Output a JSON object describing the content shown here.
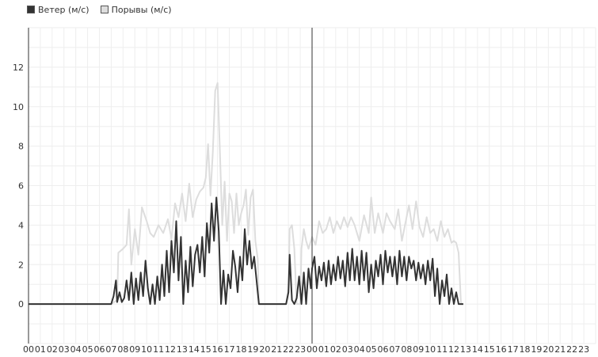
{
  "legend": [
    {
      "label": "Ветер (м/с)",
      "color": "#333333"
    },
    {
      "label": "Порывы (м/с)",
      "color": "#dddddd"
    }
  ],
  "chart_data": {
    "type": "line",
    "x_tick_labels": [
      "00",
      "01",
      "02",
      "03",
      "04",
      "05",
      "06",
      "07",
      "08",
      "09",
      "10",
      "11",
      "12",
      "13",
      "14",
      "15",
      "16",
      "17",
      "18",
      "19",
      "20",
      "21",
      "22",
      "23",
      "00",
      "01",
      "02",
      "03",
      "04",
      "05",
      "06",
      "07",
      "08",
      "09",
      "10",
      "11",
      "12",
      "13",
      "14",
      "15",
      "16",
      "17",
      "18",
      "19",
      "20",
      "21",
      "22",
      "23"
    ],
    "x_unit": "hour",
    "xlim": [
      0,
      47
    ],
    "y_ticks": [
      0,
      2,
      4,
      6,
      8,
      10,
      12
    ],
    "ylim": [
      -2,
      14
    ],
    "grid": true,
    "legend_position": "top-left",
    "day_divider_hour": 24,
    "series": [
      {
        "name": "Порывы (м/с)",
        "color": "#dddddd",
        "points": [
          [
            0,
            0
          ],
          [
            7.0,
            0
          ],
          [
            7.5,
            0.2
          ],
          [
            7.6,
            2.6
          ],
          [
            8.0,
            2.8
          ],
          [
            8.3,
            3.0
          ],
          [
            8.5,
            4.8
          ],
          [
            8.7,
            2.0
          ],
          [
            9.0,
            3.8
          ],
          [
            9.3,
            2.5
          ],
          [
            9.6,
            4.9
          ],
          [
            10.0,
            4.2
          ],
          [
            10.3,
            3.6
          ],
          [
            10.6,
            3.4
          ],
          [
            11.0,
            4.0
          ],
          [
            11.4,
            3.6
          ],
          [
            11.8,
            4.3
          ],
          [
            12.1,
            3.3
          ],
          [
            12.4,
            5.1
          ],
          [
            12.7,
            4.4
          ],
          [
            13.0,
            5.6
          ],
          [
            13.3,
            4.2
          ],
          [
            13.6,
            6.1
          ],
          [
            13.9,
            4.4
          ],
          [
            14.2,
            5.3
          ],
          [
            14.5,
            5.7
          ],
          [
            14.8,
            5.9
          ],
          [
            15.0,
            6.4
          ],
          [
            15.2,
            8.1
          ],
          [
            15.4,
            5.5
          ],
          [
            15.6,
            7.7
          ],
          [
            15.8,
            10.8
          ],
          [
            16.0,
            11.2
          ],
          [
            16.2,
            7.8
          ],
          [
            16.4,
            4.0
          ],
          [
            16.6,
            6.2
          ],
          [
            16.8,
            3.2
          ],
          [
            17.0,
            5.6
          ],
          [
            17.2,
            5.2
          ],
          [
            17.4,
            3.6
          ],
          [
            17.6,
            5.6
          ],
          [
            17.8,
            4.0
          ],
          [
            18.0,
            4.6
          ],
          [
            18.2,
            5.0
          ],
          [
            18.4,
            5.8
          ],
          [
            18.6,
            3.5
          ],
          [
            18.8,
            5.4
          ],
          [
            19.0,
            5.8
          ],
          [
            19.2,
            3.2
          ],
          [
            19.4,
            2.3
          ],
          [
            19.5,
            0
          ],
          [
            21.8,
            0
          ],
          [
            22.0,
            0.8
          ],
          [
            22.1,
            3.8
          ],
          [
            22.3,
            4.0
          ],
          [
            22.5,
            2.8
          ],
          [
            22.7,
            0
          ],
          [
            23.0,
            0
          ],
          [
            23.1,
            2.8
          ],
          [
            23.3,
            3.8
          ],
          [
            23.5,
            3.2
          ],
          [
            23.7,
            2.8
          ],
          [
            23.9,
            3.2
          ],
          [
            24.0,
            3.4
          ],
          [
            24.3,
            3.0
          ],
          [
            24.6,
            4.2
          ],
          [
            24.9,
            3.6
          ],
          [
            25.2,
            3.8
          ],
          [
            25.5,
            4.4
          ],
          [
            25.8,
            3.6
          ],
          [
            26.1,
            4.2
          ],
          [
            26.4,
            3.8
          ],
          [
            26.7,
            4.4
          ],
          [
            27.0,
            3.9
          ],
          [
            27.3,
            4.4
          ],
          [
            27.6,
            4.0
          ],
          [
            28.0,
            3.2
          ],
          [
            28.4,
            4.5
          ],
          [
            28.8,
            3.6
          ],
          [
            29.0,
            5.4
          ],
          [
            29.3,
            3.6
          ],
          [
            29.6,
            4.6
          ],
          [
            30.0,
            3.6
          ],
          [
            30.3,
            4.6
          ],
          [
            30.6,
            4.2
          ],
          [
            31.0,
            3.8
          ],
          [
            31.3,
            4.8
          ],
          [
            31.6,
            3.2
          ],
          [
            32.0,
            4.4
          ],
          [
            32.2,
            5.0
          ],
          [
            32.5,
            3.8
          ],
          [
            32.8,
            5.2
          ],
          [
            33.1,
            3.9
          ],
          [
            33.4,
            3.4
          ],
          [
            33.7,
            4.4
          ],
          [
            34.0,
            3.6
          ],
          [
            34.3,
            3.8
          ],
          [
            34.6,
            3.2
          ],
          [
            34.9,
            4.2
          ],
          [
            35.2,
            3.4
          ],
          [
            35.5,
            3.8
          ],
          [
            35.8,
            3.1
          ],
          [
            36.0,
            3.2
          ],
          [
            36.2,
            3.1
          ],
          [
            36.4,
            2.6
          ],
          [
            36.6,
            0
          ],
          [
            36.8,
            0
          ]
        ]
      },
      {
        "name": "Ветер (м/с)",
        "color": "#333333",
        "points": [
          [
            0,
            0
          ],
          [
            7.0,
            0
          ],
          [
            7.2,
            0.4
          ],
          [
            7.4,
            1.2
          ],
          [
            7.5,
            0.1
          ],
          [
            7.7,
            0.6
          ],
          [
            7.9,
            0.1
          ],
          [
            8.1,
            0.3
          ],
          [
            8.3,
            1.2
          ],
          [
            8.5,
            0.2
          ],
          [
            8.7,
            1.6
          ],
          [
            8.9,
            0.0
          ],
          [
            9.1,
            1.3
          ],
          [
            9.3,
            0.2
          ],
          [
            9.5,
            1.6
          ],
          [
            9.7,
            0.4
          ],
          [
            9.9,
            2.2
          ],
          [
            10.1,
            0.8
          ],
          [
            10.3,
            0.0
          ],
          [
            10.5,
            1.0
          ],
          [
            10.7,
            0.0
          ],
          [
            10.9,
            1.4
          ],
          [
            11.1,
            0.2
          ],
          [
            11.3,
            2.0
          ],
          [
            11.5,
            0.4
          ],
          [
            11.7,
            2.7
          ],
          [
            11.9,
            0.6
          ],
          [
            12.1,
            3.2
          ],
          [
            12.3,
            1.6
          ],
          [
            12.5,
            4.2
          ],
          [
            12.7,
            1.2
          ],
          [
            12.9,
            3.4
          ],
          [
            13.1,
            0.0
          ],
          [
            13.3,
            2.2
          ],
          [
            13.5,
            0.6
          ],
          [
            13.7,
            2.9
          ],
          [
            13.9,
            0.9
          ],
          [
            14.1,
            2.5
          ],
          [
            14.3,
            3.0
          ],
          [
            14.5,
            1.6
          ],
          [
            14.7,
            3.4
          ],
          [
            14.9,
            1.4
          ],
          [
            15.1,
            4.1
          ],
          [
            15.3,
            2.6
          ],
          [
            15.5,
            5.1
          ],
          [
            15.7,
            3.2
          ],
          [
            15.9,
            5.4
          ],
          [
            16.1,
            3.7
          ],
          [
            16.3,
            0.0
          ],
          [
            16.5,
            1.7
          ],
          [
            16.7,
            0.0
          ],
          [
            16.9,
            1.5
          ],
          [
            17.1,
            0.8
          ],
          [
            17.3,
            2.7
          ],
          [
            17.5,
            1.9
          ],
          [
            17.7,
            0.6
          ],
          [
            17.9,
            2.4
          ],
          [
            18.1,
            1.2
          ],
          [
            18.3,
            3.8
          ],
          [
            18.5,
            2.0
          ],
          [
            18.7,
            3.2
          ],
          [
            18.9,
            1.8
          ],
          [
            19.1,
            2.4
          ],
          [
            19.3,
            1.2
          ],
          [
            19.5,
            0.0
          ],
          [
            21.8,
            0.0
          ],
          [
            22.0,
            0.6
          ],
          [
            22.1,
            2.5
          ],
          [
            22.3,
            0.2
          ],
          [
            22.5,
            0.0
          ],
          [
            22.7,
            0.3
          ],
          [
            22.9,
            1.4
          ],
          [
            23.1,
            0.0
          ],
          [
            23.3,
            1.6
          ],
          [
            23.5,
            0.0
          ],
          [
            23.7,
            1.8
          ],
          [
            23.9,
            0.8
          ],
          [
            24.0,
            1.8
          ],
          [
            24.2,
            2.4
          ],
          [
            24.4,
            0.8
          ],
          [
            24.6,
            1.9
          ],
          [
            24.8,
            1.2
          ],
          [
            25.0,
            2.1
          ],
          [
            25.2,
            0.9
          ],
          [
            25.4,
            2.2
          ],
          [
            25.6,
            1.0
          ],
          [
            25.8,
            2.0
          ],
          [
            26.0,
            1.2
          ],
          [
            26.2,
            2.4
          ],
          [
            26.4,
            1.3
          ],
          [
            26.6,
            2.2
          ],
          [
            26.8,
            0.9
          ],
          [
            27.0,
            2.6
          ],
          [
            27.2,
            1.2
          ],
          [
            27.4,
            2.8
          ],
          [
            27.6,
            1.2
          ],
          [
            27.8,
            2.4
          ],
          [
            28.0,
            1.0
          ],
          [
            28.2,
            2.7
          ],
          [
            28.4,
            1.2
          ],
          [
            28.6,
            2.6
          ],
          [
            28.8,
            0.6
          ],
          [
            29.0,
            2.0
          ],
          [
            29.2,
            0.8
          ],
          [
            29.4,
            2.2
          ],
          [
            29.6,
            1.4
          ],
          [
            29.8,
            2.5
          ],
          [
            30.0,
            1.0
          ],
          [
            30.2,
            2.7
          ],
          [
            30.4,
            1.6
          ],
          [
            30.6,
            2.4
          ],
          [
            30.8,
            1.4
          ],
          [
            31.0,
            2.4
          ],
          [
            31.2,
            1.0
          ],
          [
            31.4,
            2.7
          ],
          [
            31.6,
            1.4
          ],
          [
            31.8,
            2.4
          ],
          [
            32.0,
            1.2
          ],
          [
            32.2,
            2.4
          ],
          [
            32.4,
            1.8
          ],
          [
            32.6,
            2.2
          ],
          [
            32.8,
            1.2
          ],
          [
            33.0,
            2.1
          ],
          [
            33.2,
            1.3
          ],
          [
            33.4,
            2.0
          ],
          [
            33.6,
            1.0
          ],
          [
            33.8,
            2.2
          ],
          [
            34.0,
            1.2
          ],
          [
            34.2,
            2.3
          ],
          [
            34.4,
            0.4
          ],
          [
            34.6,
            1.8
          ],
          [
            34.8,
            0.0
          ],
          [
            35.0,
            1.2
          ],
          [
            35.2,
            0.4
          ],
          [
            35.4,
            1.5
          ],
          [
            35.6,
            0.0
          ],
          [
            35.8,
            0.8
          ],
          [
            36.0,
            0.0
          ],
          [
            36.2,
            0.6
          ],
          [
            36.4,
            0.0
          ],
          [
            36.8,
            0.0
          ]
        ]
      }
    ]
  }
}
